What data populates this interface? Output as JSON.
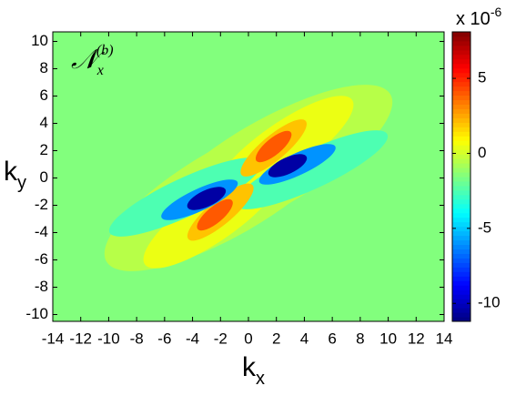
{
  "chart_data": {
    "type": "contour",
    "annotation": {
      "main": "𝒩",
      "sub": "x",
      "sup": "(b)"
    },
    "xlabel": {
      "main": "k",
      "sub": "x"
    },
    "ylabel": {
      "main": "k",
      "sub": "y"
    },
    "xlim": [
      -14,
      14
    ],
    "ylim": [
      -10.5,
      10.7
    ],
    "xticks": [
      -14,
      -12,
      -10,
      -8,
      -6,
      -4,
      -2,
      0,
      2,
      4,
      6,
      8,
      10,
      12,
      14
    ],
    "yticks": [
      -10,
      -8,
      -6,
      -4,
      -2,
      0,
      2,
      4,
      6,
      8,
      10
    ],
    "background_value": -1.5,
    "colorbar": {
      "lim": [
        -11.2,
        8.1
      ],
      "ticks": [
        -10,
        -5,
        0,
        5
      ],
      "multiplier": {
        "main": "x 10",
        "sup": "-6"
      },
      "colormap": "jet"
    },
    "regions": [
      {
        "cx": 1.5,
        "cy": 1.0,
        "rx": 10,
        "ry": 3.2,
        "angle": 30,
        "value": -0.5
      },
      {
        "cx": -1.5,
        "cy": -1.0,
        "rx": 10,
        "ry": 3.2,
        "angle": 30,
        "value": -0.5
      },
      {
        "cx": 2.5,
        "cy": 2.2,
        "rx": 6,
        "ry": 1.8,
        "angle": 35,
        "value": 0.5
      },
      {
        "cx": -2.5,
        "cy": -2.8,
        "rx": 6,
        "ry": 1.8,
        "angle": 35,
        "value": 0.5
      },
      {
        "cx": 4.5,
        "cy": 0.6,
        "rx": 6,
        "ry": 1.4,
        "angle": 25,
        "value": -2.5
      },
      {
        "cx": -4.5,
        "cy": -1.4,
        "rx": 6,
        "ry": 1.4,
        "angle": 25,
        "value": -2.5
      },
      {
        "cx": 1.8,
        "cy": 2.2,
        "rx": 3,
        "ry": 0.9,
        "angle": 40,
        "value": 2
      },
      {
        "cx": -2.0,
        "cy": -2.5,
        "rx": 3,
        "ry": 0.9,
        "angle": 40,
        "value": 2
      },
      {
        "cx": 1.8,
        "cy": 2.3,
        "rx": 1.6,
        "ry": 0.6,
        "angle": 40,
        "value": 4
      },
      {
        "cx": -2.4,
        "cy": -2.7,
        "rx": 1.6,
        "ry": 0.6,
        "angle": 40,
        "value": 4
      },
      {
        "cx": 3.5,
        "cy": 1.0,
        "rx": 3,
        "ry": 0.8,
        "angle": 25,
        "value": -6
      },
      {
        "cx": -3.5,
        "cy": -1.6,
        "rx": 3,
        "ry": 0.8,
        "angle": 25,
        "value": -6
      },
      {
        "cx": 2.8,
        "cy": 0.9,
        "rx": 1.5,
        "ry": 0.6,
        "angle": 25,
        "value": -10.5
      },
      {
        "cx": -3.0,
        "cy": -1.5,
        "rx": 1.5,
        "ry": 0.6,
        "angle": 25,
        "value": -10.5
      }
    ]
  }
}
